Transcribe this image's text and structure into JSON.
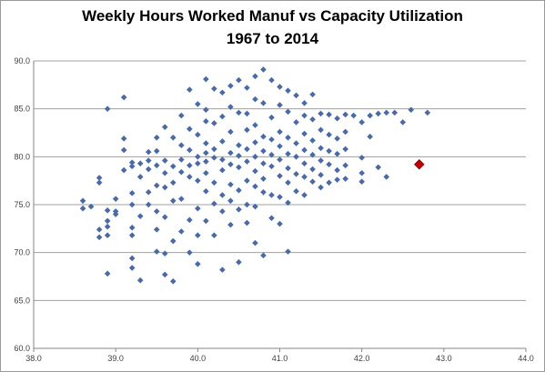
{
  "chart_data": {
    "type": "scatter",
    "title": "Weekly Hours Worked Manuf vs Capacity Utilization",
    "subtitle": "1967  to 2014",
    "xlabel": "",
    "ylabel": "",
    "xlim": [
      38.0,
      44.0
    ],
    "ylim": [
      60.0,
      90.0
    ],
    "x_ticks": [
      "38.0",
      "39.0",
      "40.0",
      "41.0",
      "42.0",
      "43.0",
      "44.0"
    ],
    "y_ticks": [
      "60.0",
      "65.0",
      "70.0",
      "75.0",
      "80.0",
      "85.0",
      "90.0"
    ],
    "grid": "horizontal",
    "legend": "none",
    "colors": {
      "series": "#4a6aa5",
      "highlight": "#c00000",
      "grid": "#a0a0a0"
    },
    "series": [
      {
        "values": [
          [
            38.6,
            75.4
          ],
          [
            38.6,
            74.6
          ],
          [
            38.7,
            74.8
          ],
          [
            38.8,
            77.8
          ],
          [
            38.8,
            77.3
          ],
          [
            38.8,
            72.4
          ],
          [
            38.8,
            71.6
          ],
          [
            38.9,
            73.3
          ],
          [
            38.9,
            72.7
          ],
          [
            38.9,
            71.8
          ],
          [
            38.9,
            74.4
          ],
          [
            38.9,
            67.8
          ],
          [
            38.9,
            85.0
          ],
          [
            39.0,
            74.0
          ],
          [
            39.0,
            74.3
          ],
          [
            39.0,
            75.6
          ],
          [
            39.1,
            81.9
          ],
          [
            39.1,
            80.7
          ],
          [
            39.1,
            78.6
          ],
          [
            39.1,
            86.2
          ],
          [
            39.2,
            79.4
          ],
          [
            39.2,
            79.0
          ],
          [
            39.2,
            76.2
          ],
          [
            39.2,
            75.0
          ],
          [
            39.2,
            72.6
          ],
          [
            39.2,
            71.8
          ],
          [
            39.2,
            69.4
          ],
          [
            39.2,
            68.4
          ],
          [
            39.3,
            79.3
          ],
          [
            39.3,
            77.9
          ],
          [
            39.3,
            73.8
          ],
          [
            39.3,
            67.1
          ],
          [
            39.4,
            80.5
          ],
          [
            39.4,
            79.6
          ],
          [
            39.4,
            78.7
          ],
          [
            39.4,
            76.3
          ],
          [
            39.4,
            75.0
          ],
          [
            39.5,
            82.0
          ],
          [
            39.5,
            80.6
          ],
          [
            39.5,
            79.1
          ],
          [
            39.5,
            77.0
          ],
          [
            39.5,
            74.3
          ],
          [
            39.5,
            72.4
          ],
          [
            39.5,
            70.1
          ],
          [
            39.6,
            83.1
          ],
          [
            39.6,
            79.6
          ],
          [
            39.6,
            78.3
          ],
          [
            39.6,
            76.8
          ],
          [
            39.6,
            73.7
          ],
          [
            39.6,
            69.9
          ],
          [
            39.6,
            67.7
          ],
          [
            39.7,
            82.0
          ],
          [
            39.7,
            79.0
          ],
          [
            39.7,
            77.3
          ],
          [
            39.7,
            75.4
          ],
          [
            39.7,
            71.2
          ],
          [
            39.7,
            67.0
          ],
          [
            39.8,
            84.3
          ],
          [
            39.8,
            81.2
          ],
          [
            39.8,
            79.7
          ],
          [
            39.8,
            78.4
          ],
          [
            39.8,
            75.6
          ],
          [
            39.8,
            72.2
          ],
          [
            39.9,
            87.0
          ],
          [
            39.9,
            82.9
          ],
          [
            39.9,
            80.7
          ],
          [
            39.9,
            79.1
          ],
          [
            39.9,
            77.9
          ],
          [
            39.9,
            73.4
          ],
          [
            39.9,
            70.0
          ],
          [
            40.0,
            85.5
          ],
          [
            40.0,
            82.3
          ],
          [
            40.0,
            80.0
          ],
          [
            40.0,
            79.3
          ],
          [
            40.0,
            77.5
          ],
          [
            40.0,
            74.6
          ],
          [
            40.0,
            71.8
          ],
          [
            40.0,
            68.8
          ],
          [
            40.1,
            88.1
          ],
          [
            40.1,
            84.9
          ],
          [
            40.1,
            83.7
          ],
          [
            40.1,
            81.4
          ],
          [
            40.1,
            80.4
          ],
          [
            40.1,
            79.5
          ],
          [
            40.1,
            78.3
          ],
          [
            40.1,
            76.4
          ],
          [
            40.1,
            73.3
          ],
          [
            40.2,
            87.1
          ],
          [
            40.2,
            83.5
          ],
          [
            40.2,
            80.8
          ],
          [
            40.2,
            79.9
          ],
          [
            40.2,
            77.3
          ],
          [
            40.2,
            75.1
          ],
          [
            40.2,
            71.8
          ],
          [
            40.3,
            86.7
          ],
          [
            40.3,
            84.2
          ],
          [
            40.3,
            81.6
          ],
          [
            40.3,
            79.7
          ],
          [
            40.3,
            78.6
          ],
          [
            40.3,
            76.0
          ],
          [
            40.3,
            74.3
          ],
          [
            40.3,
            68.2
          ],
          [
            40.4,
            87.4
          ],
          [
            40.4,
            85.2
          ],
          [
            40.4,
            82.6
          ],
          [
            40.4,
            80.4
          ],
          [
            40.4,
            79.2
          ],
          [
            40.4,
            77.1
          ],
          [
            40.4,
            75.4
          ],
          [
            40.4,
            72.9
          ],
          [
            40.5,
            88.0
          ],
          [
            40.5,
            84.6
          ],
          [
            40.5,
            81.2
          ],
          [
            40.5,
            80.1
          ],
          [
            40.5,
            78.9
          ],
          [
            40.5,
            76.5
          ],
          [
            40.5,
            74.5
          ],
          [
            40.5,
            69.0
          ],
          [
            40.6,
            87.2
          ],
          [
            40.6,
            84.5
          ],
          [
            40.6,
            82.8
          ],
          [
            40.6,
            80.8
          ],
          [
            40.6,
            79.5
          ],
          [
            40.6,
            77.5
          ],
          [
            40.6,
            75.0
          ],
          [
            40.6,
            73.1
          ],
          [
            40.7,
            88.4
          ],
          [
            40.7,
            86.0
          ],
          [
            40.7,
            83.3
          ],
          [
            40.7,
            81.5
          ],
          [
            40.7,
            80.0
          ],
          [
            40.7,
            78.5
          ],
          [
            40.7,
            76.9
          ],
          [
            40.7,
            74.8
          ],
          [
            40.7,
            71.0
          ],
          [
            40.8,
            89.1
          ],
          [
            40.8,
            85.6
          ],
          [
            40.8,
            82.1
          ],
          [
            40.8,
            80.6
          ],
          [
            40.8,
            79.3
          ],
          [
            40.8,
            77.7
          ],
          [
            40.8,
            76.3
          ],
          [
            40.8,
            69.7
          ],
          [
            40.9,
            88.0
          ],
          [
            40.9,
            84.1
          ],
          [
            40.9,
            81.8
          ],
          [
            40.9,
            80.2
          ],
          [
            40.9,
            79.0
          ],
          [
            40.9,
            76.0
          ],
          [
            40.9,
            73.6
          ],
          [
            41.0,
            87.3
          ],
          [
            41.0,
            85.4
          ],
          [
            41.0,
            82.6
          ],
          [
            41.0,
            81.1
          ],
          [
            41.0,
            79.7
          ],
          [
            41.0,
            78.0
          ],
          [
            41.0,
            75.8
          ],
          [
            41.0,
            73.0
          ],
          [
            41.1,
            86.9
          ],
          [
            41.1,
            84.7
          ],
          [
            41.1,
            82.0
          ],
          [
            41.1,
            80.3
          ],
          [
            41.1,
            78.8
          ],
          [
            41.1,
            77.3
          ],
          [
            41.1,
            75.2
          ],
          [
            41.1,
            70.1
          ],
          [
            41.2,
            86.4
          ],
          [
            41.2,
            83.6
          ],
          [
            41.2,
            81.4
          ],
          [
            41.2,
            80.0
          ],
          [
            41.2,
            78.2
          ],
          [
            41.2,
            76.4
          ],
          [
            41.3,
            85.6
          ],
          [
            41.3,
            84.3
          ],
          [
            41.3,
            82.4
          ],
          [
            41.3,
            80.7
          ],
          [
            41.3,
            79.3
          ],
          [
            41.3,
            77.9
          ],
          [
            41.3,
            76.0
          ],
          [
            41.4,
            86.5
          ],
          [
            41.4,
            83.9
          ],
          [
            41.4,
            81.7
          ],
          [
            41.4,
            80.2
          ],
          [
            41.4,
            78.7
          ],
          [
            41.4,
            77.4
          ],
          [
            41.5,
            84.5
          ],
          [
            41.5,
            82.8
          ],
          [
            41.5,
            80.9
          ],
          [
            41.5,
            79.6
          ],
          [
            41.5,
            78.1
          ],
          [
            41.5,
            76.8
          ],
          [
            41.6,
            84.4
          ],
          [
            41.6,
            82.3
          ],
          [
            41.6,
            80.6
          ],
          [
            41.6,
            79.2
          ],
          [
            41.6,
            77.3
          ],
          [
            41.7,
            84.0
          ],
          [
            41.7,
            81.9
          ],
          [
            41.7,
            80.3
          ],
          [
            41.7,
            78.6
          ],
          [
            41.7,
            77.6
          ],
          [
            41.8,
            84.4
          ],
          [
            41.8,
            82.6
          ],
          [
            41.8,
            80.8
          ],
          [
            41.8,
            79.1
          ],
          [
            41.8,
            77.7
          ],
          [
            41.9,
            84.3
          ],
          [
            42.0,
            83.6
          ],
          [
            42.0,
            79.9
          ],
          [
            42.0,
            78.3
          ],
          [
            42.0,
            77.4
          ],
          [
            42.1,
            84.3
          ],
          [
            42.1,
            82.1
          ],
          [
            42.2,
            84.5
          ],
          [
            42.2,
            78.9
          ],
          [
            42.3,
            84.6
          ],
          [
            42.3,
            77.9
          ],
          [
            42.4,
            84.6
          ],
          [
            42.5,
            83.6
          ],
          [
            42.6,
            84.9
          ],
          [
            42.8,
            84.6
          ]
        ]
      },
      {
        "values": [
          [
            42.7,
            79.2
          ]
        ]
      }
    ]
  }
}
